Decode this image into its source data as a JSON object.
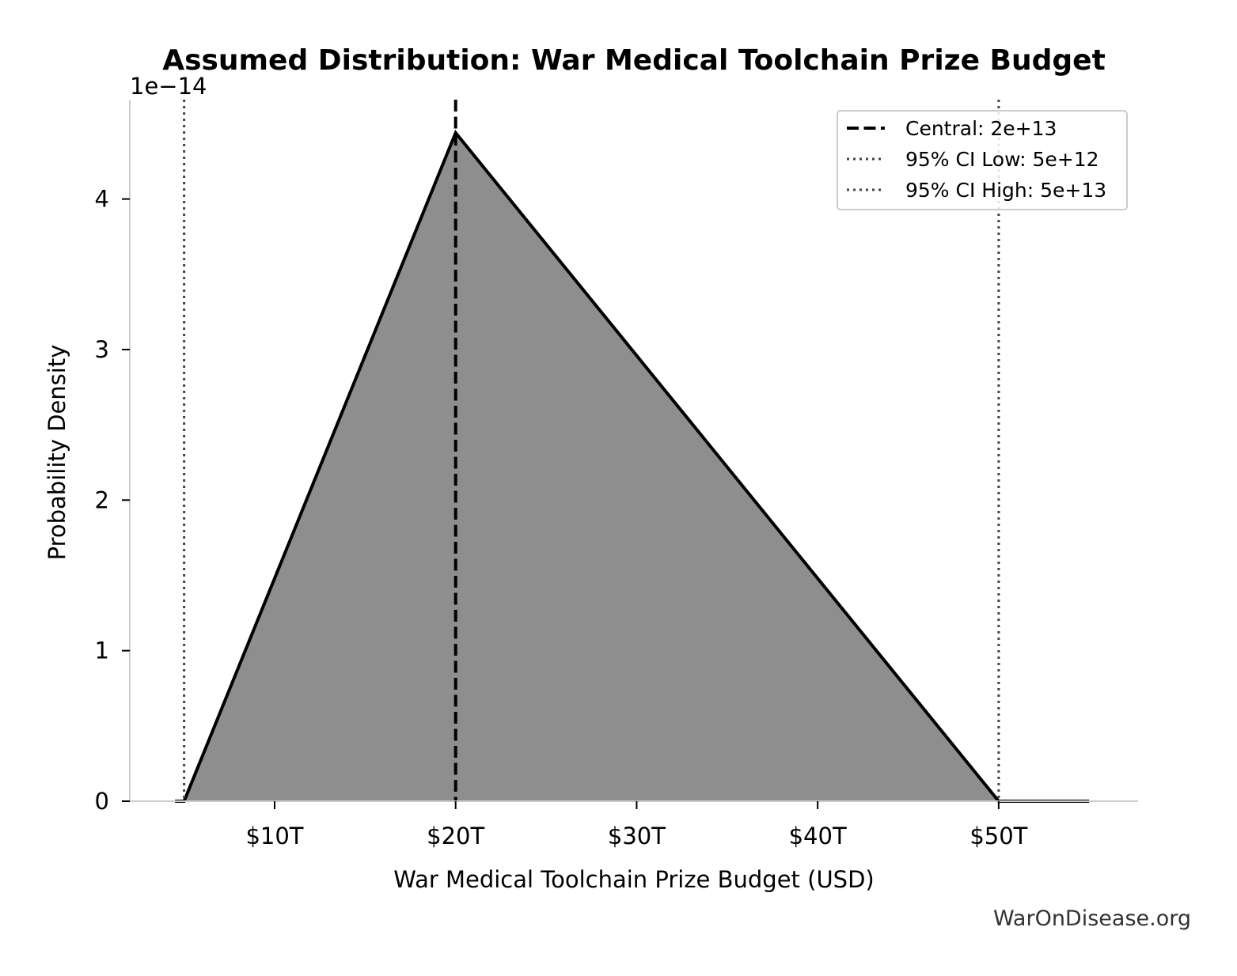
{
  "chart_data": {
    "type": "area",
    "title": "Assumed Distribution: War Medical Toolchain Prize Budget",
    "xlabel": "War Medical Toolchain Prize Budget (USD)",
    "ylabel": "Probability Density",
    "y_offset_label": "1e−14",
    "xlim": [
      2000000000000,
      57700000000000
    ],
    "ylim": [
      0,
      4.66e-14
    ],
    "x_ticks": [
      {
        "value": 10000000000000,
        "label": "$10T"
      },
      {
        "value": 20000000000000,
        "label": "$20T"
      },
      {
        "value": 30000000000000,
        "label": "$30T"
      },
      {
        "value": 40000000000000,
        "label": "$40T"
      },
      {
        "value": 50000000000000,
        "label": "$50T"
      }
    ],
    "y_ticks": [
      {
        "value": 0,
        "label": "0"
      },
      {
        "value": 1e-14,
        "label": "1"
      },
      {
        "value": 2e-14,
        "label": "2"
      },
      {
        "value": 3e-14,
        "label": "3"
      },
      {
        "value": 4e-14,
        "label": "4"
      }
    ],
    "series": [
      {
        "x": [
          4500000000000,
          5000000000000,
          20000000000000,
          50000000000000,
          55000000000000
        ],
        "y": [
          0,
          0,
          4.44e-14,
          0,
          0
        ],
        "fill": "#8e8e8e",
        "line_color": "#000000"
      }
    ],
    "reference_lines": [
      {
        "name": "Central: 2e+13",
        "x": 20000000000000,
        "style": "dashed",
        "color": "#000000"
      },
      {
        "name": "95% CI Low: 5e+12",
        "x": 5000000000000,
        "style": "dotted",
        "color": "#444444"
      },
      {
        "name": "95% CI High: 5e+13",
        "x": 50000000000000,
        "style": "dotted",
        "color": "#444444"
      }
    ],
    "legend_position": "top-right",
    "grid": false
  },
  "watermark": "WarOnDisease.org"
}
